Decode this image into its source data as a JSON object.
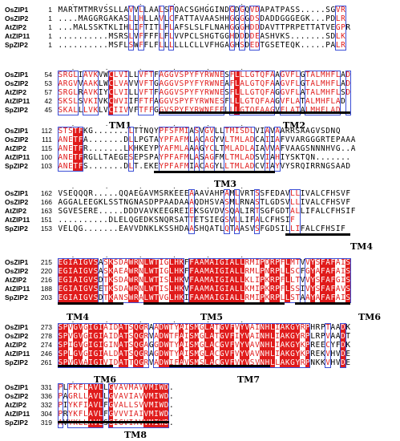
{
  "sequences": [
    "OsZIP1",
    "OsZIP2",
    "AtZIP2",
    "AtZIP11",
    "SpZIP2"
  ],
  "blocks": [
    {
      "start_numbers": [
        "1",
        "1",
        "1",
        "1",
        "1"
      ],
      "rows": [
        "MARTMTMRVSSLLAVVLLAALSFQACSGHGGINDGDGQVDAPATPASS.....SGVR",
        "....MAGGRGAKASLLHLLAVLCFATTAVAASHHGGGGDSDADDGGGEGK...PDLR",
        "...MALSSKTKLIHLIFTITLFLAFSLSLFLNAHGGGHDDDAVTTPRPETTATVEGPR",
        "..........MSRSLVFFFFLFLVVPCLSHGTGGHDDDDEASHVKS.......SDLK",
        "..........MSFLSWFFLFLLLLLLCLLVFHGAGHSDEDTGSETEQK.....PALR"
      ],
      "tm": []
    },
    {
      "start_numbers": [
        "54",
        "53",
        "57",
        "42",
        "45"
      ],
      "rows": [
        "SRGLIAVKVWCLVILLVFTFAGGVSPYFYRWNESFLLLGTQFAAGVFLGTALMHFLAD",
        "ARGVVAAKLWCLVAVVVFTGAGGVSPYFYRWNEAFLALGTQFAAGVFLGTALMHFLAD",
        "SRGLRAVKIYCLVILLVFTFAGGVSPYFYRWNESFLLLGTQFAGGVFLATALMHFLSD",
        "SKSLSVKIVKCWVIIFFTFAGGVSPYFYRWNESFLLLGTQFAAGVFLATALMHFLAD",
        "SKALLLVKLVCIIVVFTFFGGVSPYFYRWNEEFLLLGTQFAAGVFLATALMHFLAD"
      ],
      "tm": [
        "TM1",
        "TM2"
      ]
    },
    {
      "start_numbers": [
        "112",
        "111",
        "115",
        "100",
        "103"
      ],
      "rows": [
        "STSTFKG.......LTTNQYPFSFMIASVGVLLTMISDLVIAVAARRSAAGVSDNQ",
        "ANETFA.......DLLPGTAYPFAFMLACAGYVLTMLADCAIIAFVVARGGGRTEPAAA",
        "ANETFR.......LKHKEYPYAFMLAAAGYCLTMLADLAIAVVAFVAAGSNNNHVG..A",
        "ANETFRGLLTAEGESEPSPAYPFAFMLASAGFMLTMLADSVIAHIYSKTQN.......",
        "ANETFS.......DLT.EKEYPFAFMIACAGYLLTMLADCVIAYVYSRQIRRNGSAAD"
      ],
      "tm": [
        "TM3"
      ]
    },
    {
      "start_numbers": [
        "162",
        "166",
        "163",
        "151",
        "153"
      ],
      "rows": [
        "VSEQQQR.....QQAEGAVMSRKEEEAAAVAHPAMLVRTSSFEDAVLLIVALCFHSVF",
        "AGGALEEGKLSSTNGNASDPPAADAAAQDHSVASMLRNASTLGDSVLLIVALCFHSVF",
        "SGVESERE.....DDDVAVKEEGREIEKSGVDVSQALIRTSGFGDTALLIFALCFHSIF",
        "..........DLELQGEDKSNQRSATTETSIEGSVLLIFALCFHSIF",
        "VELQG.......EAVVDNKLKSSHDAASHQATLQTAASVSFGDSILLIFALCFHSIF"
      ],
      "tm": [
        "TM4"
      ]
    },
    {
      "start_numbers": [
        "215",
        "220",
        "216",
        "188",
        "203"
      ],
      "rows": [
        "EGIAIGVSASKSDAWRNLWTIGLHKFFAAMAIGIALLRMIPDRPFLMTVVYSFAFAIS",
        "EGIAIGVSASKAEAWRNLWTIGLHKFFAAMAIGIALLRMLPNRPLLSCFGYAFAFAIS",
        "EGIAIGVSDTKSDAWRNLWTISLHKVFAAMAIGIALLKLIPKRPFLLTVVYSFAFGIS",
        "EGIAIGVSETKSDAWRNLWTISLHKVFAAMAIGIALLKMIPKRPFLSSIVYSFAFAVS",
        "EGIAIGVSDTKANSWRALWTVGLHKIFAAMAIGIALLRMIPKRPLLSTAAYAFAFAIS"
      ],
      "tm": [
        "TM4",
        "TM5",
        "TM6"
      ]
    },
    {
      "start_numbers": [
        "273",
        "278",
        "274",
        "246",
        "261"
      ],
      "rows": [
        "SPVGVGIGIAIDATSQGRAADWTYAISMGLATGVFVYVAINHLIAKGYRPHRPTAADK",
        "SPVGVGIGIAIDATSQGRVADWTFAISMGLATGVFIYVAINHLIAKGYRPLRPVAADT",
        "SPIGVGIGIGINATSQGAGGDWTYAISMGLACGVFVYVAVNHLIAKGYKPREECYFDK",
        "SPLGVGIGIALDATSQGRAGDWTYAISMGLACGVFVYVAVNHLIAKGYKPREKVHVDE",
        "SPVGVAIGIVIDATTQGRVADWIFAVSMSLACGVFVYVSVNHLLAKGYRPNKKVHVDE"
      ],
      "tm": [
        "TM6",
        "TM7"
      ]
    },
    {
      "start_numbers": [
        "331",
        "336",
        "332",
        "304",
        "319"
      ],
      "rows": [
        "PLFKFLAVLLGVAVMAVVMIWD.",
        "PAGRLLAVLLGVAVIAVVMIWD.",
        "PIYKFIAVLFGVALLSVVMIWD.",
        "PRYKFLAVLFGVVVIAIVMIWD.",
        "AVYKLLAVLSGIGVIAVVMIWD."
      ],
      "tm": [
        "TM8"
      ]
    }
  ]
}
